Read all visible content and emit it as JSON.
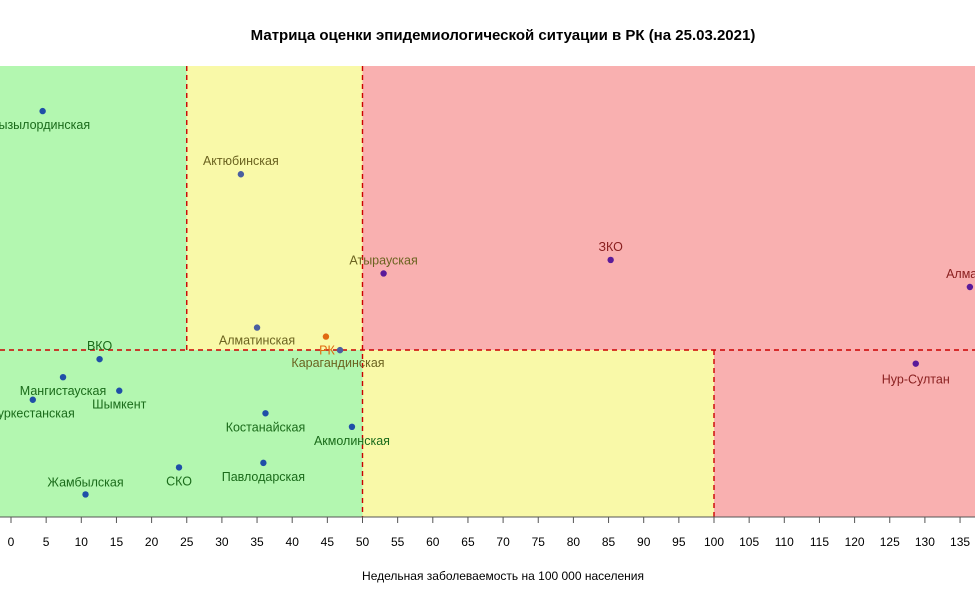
{
  "chart_data": {
    "type": "scatter",
    "title": "Матрица оценки эпидемиологической ситуации в РК (на 25.03.2021)",
    "xlabel": "Недельная заболеваемость на 100 000 населения",
    "ylabel": "",
    "x_ticks": [
      0,
      5,
      10,
      15,
      20,
      25,
      30,
      35,
      40,
      45,
      50,
      55,
      60,
      65,
      70,
      75,
      80,
      85,
      90,
      95,
      100,
      105,
      110,
      115,
      120,
      125,
      130,
      135
    ],
    "zone_colors": {
      "green": "#b3f7b0",
      "yellow": "#f9f9a8",
      "red": "#f9b0b0"
    },
    "threshold_color": "#cc0000",
    "points": [
      {
        "label": "Кызылординская",
        "x": 4.5,
        "level": 0.9,
        "color": "#1f4fa8",
        "label_color": "#1a6b1a"
      },
      {
        "label": "Актюбинская",
        "x": 32.7,
        "level": 0.76,
        "color": "#4a5fa0",
        "label_color": "#6b6320"
      },
      {
        "label": "Атырауская",
        "x": 53.0,
        "level": 0.54,
        "color": "#5a1a9a",
        "label_color": "#6b6320"
      },
      {
        "label": "ЗКО",
        "x": 85.3,
        "level": 0.57,
        "color": "#5a1a9a",
        "label_color": "#8a2020"
      },
      {
        "label": "Алматы",
        "x": 136.4,
        "level": 0.51,
        "color": "#5a1a9a",
        "label_color": "#8a2020"
      },
      {
        "label": "Алматинская",
        "x": 35.0,
        "level": 0.42,
        "color": "#4a5fa0",
        "label_color": "#6b6320"
      },
      {
        "label": "РК",
        "x": 44.8,
        "level": 0.4,
        "color": "#e06a10",
        "label_color": "#e06a10"
      },
      {
        "label": "Карагандинская",
        "x": 46.8,
        "level": 0.37,
        "color": "#4a5fa0",
        "label_color": "#6b6320"
      },
      {
        "label": "ВКО",
        "x": 12.6,
        "level": 0.35,
        "color": "#1f4fa8",
        "label_color": "#1a6b1a"
      },
      {
        "label": "Нур-Султан",
        "x": 128.7,
        "level": 0.34,
        "color": "#5a1a9a",
        "label_color": "#8a2020"
      },
      {
        "label": "Мангистауская",
        "x": 7.4,
        "level": 0.31,
        "color": "#1f4fa8",
        "label_color": "#1a6b1a"
      },
      {
        "label": "Шымкент",
        "x": 15.4,
        "level": 0.28,
        "color": "#1f4fa8",
        "label_color": "#1a6b1a"
      },
      {
        "label": "Туркестанская",
        "x": 3.1,
        "level": 0.26,
        "color": "#1f4fa8",
        "label_color": "#1a6b1a"
      },
      {
        "label": "Костанайская",
        "x": 36.2,
        "level": 0.23,
        "color": "#1f4fa8",
        "label_color": "#1a6b1a"
      },
      {
        "label": "Акмолинская",
        "x": 48.5,
        "level": 0.2,
        "color": "#1f4fa8",
        "label_color": "#1a6b1a"
      },
      {
        "label": "СКО",
        "x": 23.9,
        "level": 0.11,
        "color": "#1f4fa8",
        "label_color": "#1a6b1a"
      },
      {
        "label": "Павлодарская",
        "x": 35.9,
        "level": 0.12,
        "color": "#1f4fa8",
        "label_color": "#1a6b1a"
      },
      {
        "label": "Жамбылская",
        "x": 10.6,
        "level": 0.05,
        "color": "#1f4fa8",
        "label_color": "#1a6b1a"
      }
    ]
  }
}
